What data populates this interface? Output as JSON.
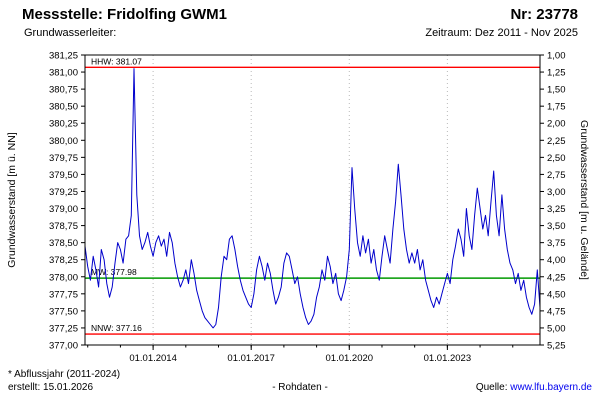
{
  "header": {
    "title": "Messstelle: Fridolfing GWM1",
    "number": "Nr: 23778",
    "aquifer_label": "Grundwasserleiter:",
    "period": "Zeitraum: Dez 2011 - Nov 2025"
  },
  "footer": {
    "note": "* Abflussjahr (2011-2024)",
    "created": "erstellt: 15.01.2026",
    "center": "- Rohdaten -",
    "source_label": "Quelle: ",
    "source_link": "www.lfu.bayern.de",
    "link_color": "#0000ee"
  },
  "chart_data": {
    "type": "line",
    "title": "Messstelle: Fridolfing GWM1",
    "ylabel_left": "Grundwasserstand [m ü. NN]",
    "ylabel_right": "Grundwasserstand [m u. Gelände]",
    "ylim_left": [
      377.0,
      381.25
    ],
    "ylim_right": [
      5.25,
      1.0
    ],
    "ytick_step": 0.25,
    "right_axis_offset": 382.25,
    "x_range_years": [
      2011.9167,
      2025.8333
    ],
    "xticks": [
      "01.01.2014",
      "01.01.2017",
      "01.01.2020",
      "01.01.2023"
    ],
    "xtick_years": [
      2014.0,
      2017.0,
      2020.0,
      2023.0
    ],
    "grid": "vertical-dotted-at-xticks",
    "legend_position": "none",
    "reference_lines": [
      {
        "name": "HHW",
        "label": "HHW: 381.07",
        "value": 381.07,
        "color": "#ff0000"
      },
      {
        "name": "MW",
        "label": "MW: 377.98",
        "value": 377.98,
        "color": "#009900"
      },
      {
        "name": "NNW",
        "label": "NNW: 377.16",
        "value": 377.16,
        "color": "#ff0000"
      }
    ],
    "series": [
      {
        "name": "Rohdaten",
        "color": "#0000cc",
        "x_start": "Dez 2011",
        "x_end": "Nov 2025",
        "x_step": "1 Monat",
        "values": [
          378.45,
          378.15,
          377.95,
          378.3,
          378.1,
          377.85,
          378.4,
          378.25,
          377.9,
          377.7,
          377.85,
          378.2,
          378.5,
          378.4,
          378.2,
          378.55,
          378.6,
          378.9,
          381.05,
          379.2,
          378.6,
          378.4,
          378.5,
          378.65,
          378.45,
          378.3,
          378.5,
          378.6,
          378.45,
          378.55,
          378.3,
          378.65,
          378.5,
          378.2,
          378.0,
          377.85,
          377.95,
          378.1,
          377.9,
          378.25,
          378.05,
          377.8,
          377.65,
          377.5,
          377.4,
          377.35,
          377.3,
          377.25,
          377.3,
          377.55,
          378.0,
          378.3,
          378.25,
          378.55,
          378.6,
          378.4,
          378.15,
          377.95,
          377.8,
          377.7,
          377.6,
          377.55,
          377.75,
          378.1,
          378.3,
          378.15,
          377.95,
          378.2,
          378.05,
          377.8,
          377.6,
          377.7,
          377.85,
          378.2,
          378.35,
          378.3,
          378.1,
          377.9,
          378.0,
          377.75,
          377.55,
          377.4,
          377.3,
          377.35,
          377.45,
          377.7,
          377.85,
          378.1,
          377.95,
          378.3,
          378.15,
          377.9,
          378.05,
          377.75,
          377.65,
          377.8,
          378.0,
          378.4,
          379.6,
          379.0,
          378.5,
          378.3,
          378.6,
          378.35,
          378.55,
          378.2,
          378.4,
          378.1,
          377.95,
          378.3,
          378.6,
          378.4,
          378.2,
          378.7,
          379.1,
          379.65,
          379.2,
          378.7,
          378.4,
          378.2,
          378.35,
          378.2,
          378.4,
          378.1,
          378.25,
          377.95,
          377.8,
          377.65,
          377.55,
          377.7,
          377.6,
          377.75,
          377.9,
          378.05,
          377.9,
          378.25,
          378.45,
          378.7,
          378.55,
          378.3,
          379.0,
          378.6,
          378.4,
          378.9,
          379.3,
          379.0,
          378.7,
          378.9,
          378.6,
          379.1,
          379.55,
          378.9,
          378.6,
          379.2,
          378.7,
          378.4,
          378.2,
          378.1,
          377.9,
          378.05,
          377.8,
          377.95,
          377.7,
          377.55,
          377.45,
          377.6,
          378.1,
          377.55
        ]
      }
    ]
  }
}
